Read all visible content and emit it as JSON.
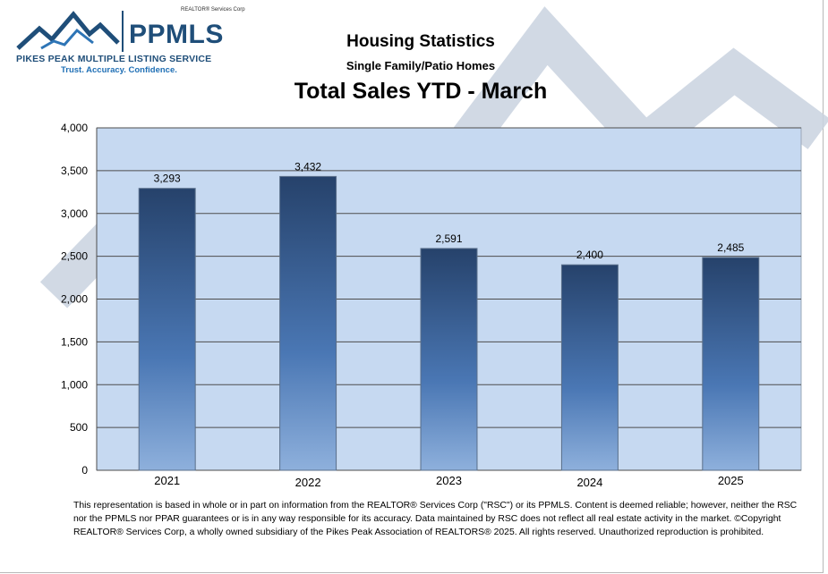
{
  "logo": {
    "corp": "REALTOR® Services Corp",
    "brand": "PPMLS",
    "name": "PIKES PEAK MULTIPLE LISTING SERVICE",
    "tagline": "Trust. Accuracy. Confidence."
  },
  "header": {
    "title": "Housing Statistics",
    "subtitle": "Single Family/Patio Homes",
    "main_title": "Total Sales YTD - March"
  },
  "chart_data": {
    "type": "bar",
    "categories": [
      "2021",
      "2022",
      "2023",
      "2024",
      "2025"
    ],
    "values": [
      3293,
      3432,
      2591,
      2400,
      2485
    ],
    "value_labels": [
      "3,293",
      "3,432",
      "2,591",
      "2,400",
      "2,485"
    ],
    "yticks": [
      0,
      500,
      1000,
      1500,
      2000,
      2500,
      3000,
      3500,
      4000
    ],
    "ytick_labels": [
      "0",
      "500",
      "1,000",
      "1,500",
      "2,000",
      "2,500",
      "3,000",
      "3,500",
      "4,000"
    ],
    "ylim": [
      0,
      4000
    ],
    "grid": true,
    "xlabel": "",
    "ylabel": "",
    "plot_bg": "#c6d9f1",
    "bar_top_color": "#26426b",
    "bar_mid_color": "#4a77b4",
    "bar_bottom_color": "#8eb0dc"
  },
  "footnote": "This representation is based in whole or in part on information from the REALTOR® Services Corp (\"RSC\") or its PPMLS. Content is deemed reliable; however, neither the RSC nor the PPMLS nor PPAR guarantees or is in any way responsible for its accuracy. Data maintained by RSC does not reflect all real estate activity in the market. ©Copyright REALTOR® Services Corp, a wholly owned subsidiary of the Pikes Peak Association of REALTORS® 2025. All rights reserved. Unauthorized reproduction is prohibited."
}
